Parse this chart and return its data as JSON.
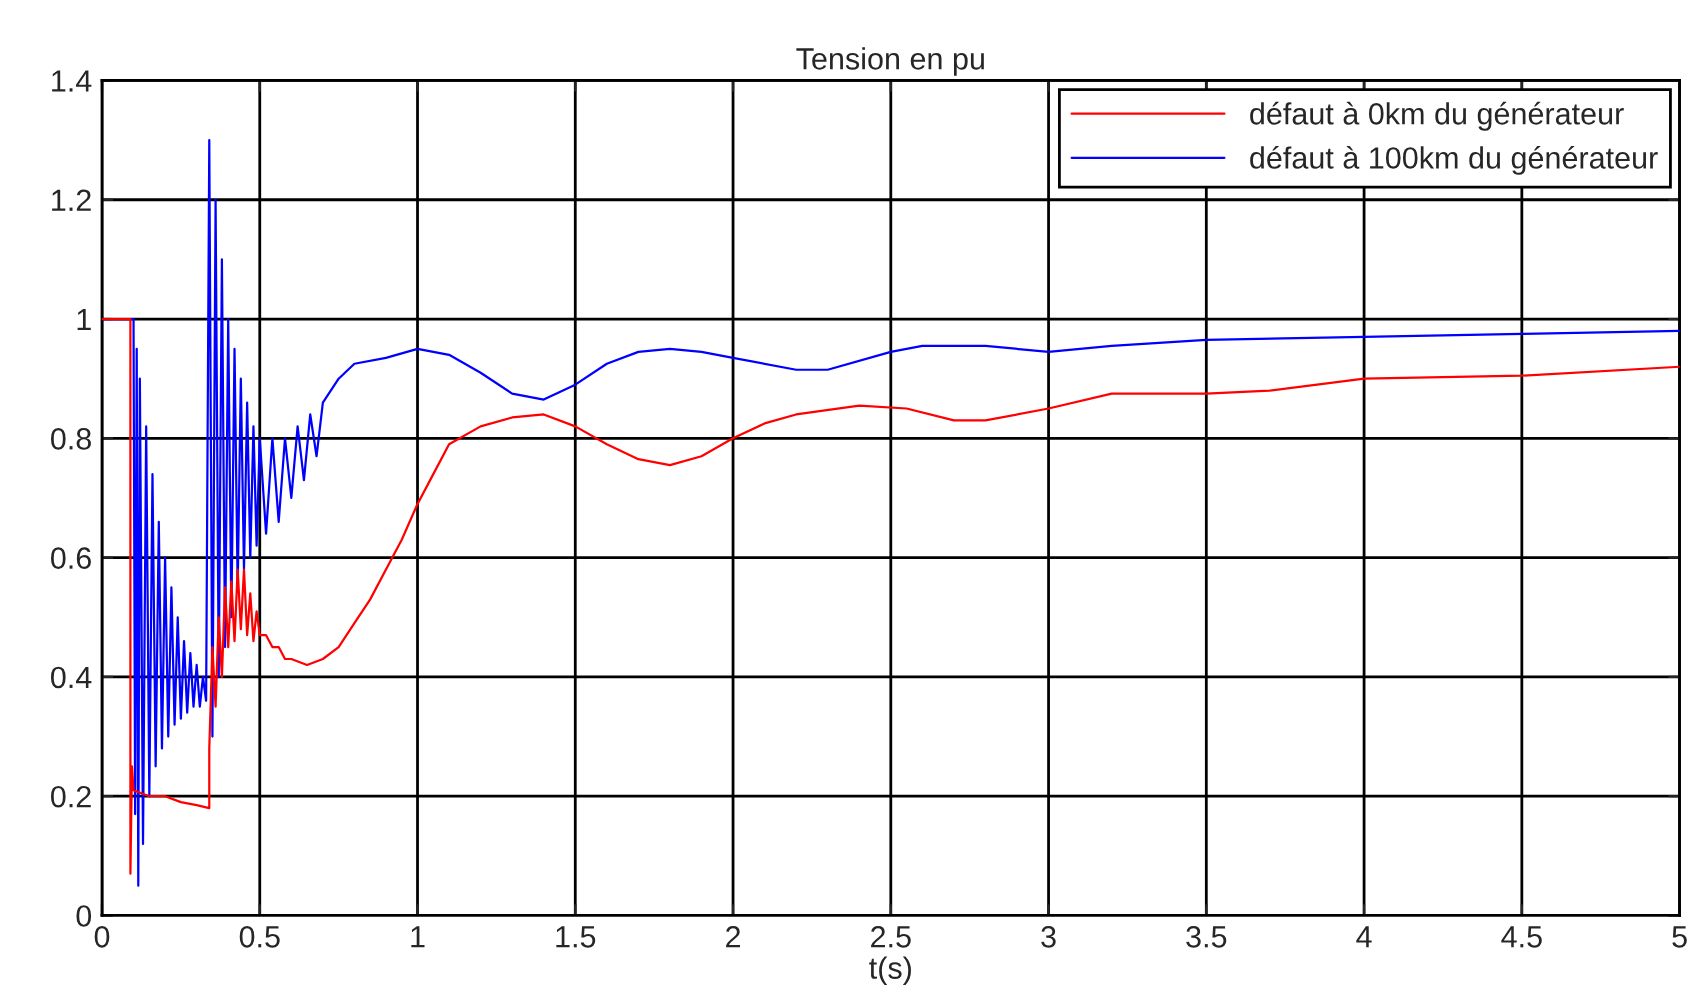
{
  "chart_data": {
    "type": "line",
    "title": "Tension en pu",
    "xlabel": "t(s)",
    "xlim": [
      0,
      5
    ],
    "xticks": [
      0,
      0.5,
      1,
      1.5,
      2,
      2.5,
      3,
      3.5,
      4,
      4.5,
      5
    ],
    "ylim": [
      0,
      1.4
    ],
    "yticks": [
      0,
      0.2,
      0.4,
      0.6,
      0.8,
      1,
      1.2,
      1.4
    ],
    "grid": true,
    "legend": "top right",
    "line_style": "solid",
    "series": [
      {
        "name": "défaut à 0km du générateur",
        "color": "#ff0000",
        "x": [
          0,
          0.09,
          0.09,
          0.095,
          0.1,
          0.15,
          0.2,
          0.25,
          0.3,
          0.34,
          0.34,
          0.35,
          0.36,
          0.37,
          0.38,
          0.39,
          0.4,
          0.41,
          0.42,
          0.43,
          0.44,
          0.45,
          0.46,
          0.47,
          0.48,
          0.49,
          0.5,
          0.52,
          0.54,
          0.56,
          0.58,
          0.6,
          0.65,
          0.7,
          0.75,
          0.8,
          0.85,
          0.9,
          0.95,
          1.0,
          1.05,
          1.1,
          1.2,
          1.3,
          1.4,
          1.5,
          1.6,
          1.7,
          1.8,
          1.9,
          2.0,
          2.1,
          2.2,
          2.4,
          2.55,
          2.7,
          2.8,
          3.0,
          3.2,
          3.5,
          3.7,
          4.0,
          4.5,
          5.0
        ],
        "values": [
          1,
          1,
          0.07,
          0.25,
          0.21,
          0.2,
          0.2,
          0.19,
          0.185,
          0.18,
          0.28,
          0.45,
          0.35,
          0.5,
          0.4,
          0.55,
          0.45,
          0.56,
          0.46,
          0.58,
          0.48,
          0.58,
          0.47,
          0.54,
          0.46,
          0.51,
          0.47,
          0.47,
          0.45,
          0.45,
          0.43,
          0.43,
          0.42,
          0.43,
          0.45,
          0.49,
          0.53,
          0.58,
          0.63,
          0.69,
          0.74,
          0.79,
          0.82,
          0.835,
          0.84,
          0.82,
          0.79,
          0.765,
          0.755,
          0.77,
          0.8,
          0.825,
          0.84,
          0.855,
          0.85,
          0.83,
          0.83,
          0.85,
          0.875,
          0.875,
          0.88,
          0.9,
          0.905,
          0.92
        ]
      },
      {
        "name": "défaut à 100km du générateur",
        "color": "#0000ff",
        "x": [
          0,
          0.1,
          0.1,
          0.105,
          0.11,
          0.115,
          0.12,
          0.13,
          0.14,
          0.15,
          0.16,
          0.17,
          0.18,
          0.19,
          0.2,
          0.21,
          0.22,
          0.23,
          0.24,
          0.25,
          0.26,
          0.27,
          0.28,
          0.29,
          0.3,
          0.31,
          0.32,
          0.33,
          0.34,
          0.35,
          0.36,
          0.37,
          0.38,
          0.39,
          0.4,
          0.41,
          0.42,
          0.43,
          0.44,
          0.45,
          0.46,
          0.47,
          0.48,
          0.49,
          0.5,
          0.52,
          0.54,
          0.56,
          0.58,
          0.6,
          0.62,
          0.64,
          0.66,
          0.68,
          0.7,
          0.75,
          0.8,
          0.9,
          1.0,
          1.1,
          1.2,
          1.3,
          1.4,
          1.5,
          1.6,
          1.7,
          1.8,
          1.9,
          2.0,
          2.2,
          2.3,
          2.5,
          2.6,
          2.8,
          3.0,
          3.2,
          3.5,
          4.0,
          4.5,
          5.0
        ],
        "values": [
          1,
          1,
          0.99,
          0.17,
          0.95,
          0.05,
          0.9,
          0.12,
          0.82,
          0.2,
          0.74,
          0.25,
          0.66,
          0.28,
          0.6,
          0.3,
          0.55,
          0.32,
          0.5,
          0.33,
          0.46,
          0.34,
          0.44,
          0.35,
          0.42,
          0.35,
          0.4,
          0.36,
          1.3,
          0.3,
          1.2,
          0.4,
          1.1,
          0.45,
          1.0,
          0.5,
          0.95,
          0.55,
          0.9,
          0.58,
          0.86,
          0.6,
          0.82,
          0.62,
          0.8,
          0.64,
          0.8,
          0.66,
          0.8,
          0.7,
          0.82,
          0.73,
          0.84,
          0.77,
          0.86,
          0.9,
          0.925,
          0.935,
          0.95,
          0.94,
          0.91,
          0.875,
          0.865,
          0.89,
          0.925,
          0.945,
          0.95,
          0.945,
          0.935,
          0.915,
          0.915,
          0.945,
          0.955,
          0.955,
          0.945,
          0.955,
          0.965,
          0.97,
          0.975,
          0.98
        ]
      }
    ]
  }
}
